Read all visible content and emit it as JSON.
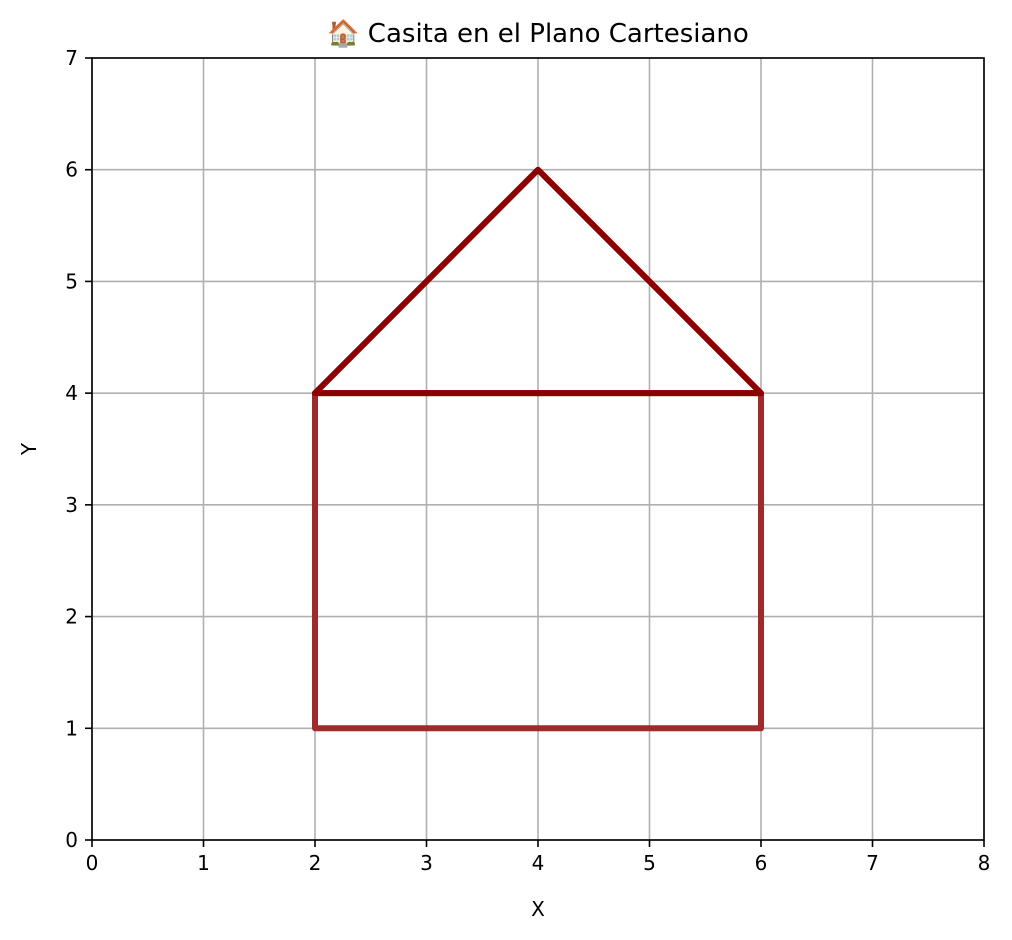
{
  "chart_data": {
    "type": "line",
    "title": "🏠 Casita en el Plano Cartesiano",
    "xlabel": "X",
    "ylabel": "Y",
    "xlim": [
      0,
      8
    ],
    "ylim": [
      0,
      7
    ],
    "xticks": [
      "0",
      "1",
      "2",
      "3",
      "4",
      "5",
      "6",
      "7",
      "8"
    ],
    "yticks": [
      "0",
      "1",
      "2",
      "3",
      "4",
      "5",
      "6",
      "7"
    ],
    "grid": true,
    "series": [
      {
        "color": "#a0292b",
        "x": [
          2,
          6,
          6,
          2,
          2
        ],
        "y": [
          1,
          1,
          4,
          4,
          1
        ]
      },
      {
        "color": "#8b0000",
        "x": [
          2,
          4,
          6,
          2
        ],
        "y": [
          4,
          6,
          4,
          4
        ]
      }
    ]
  }
}
